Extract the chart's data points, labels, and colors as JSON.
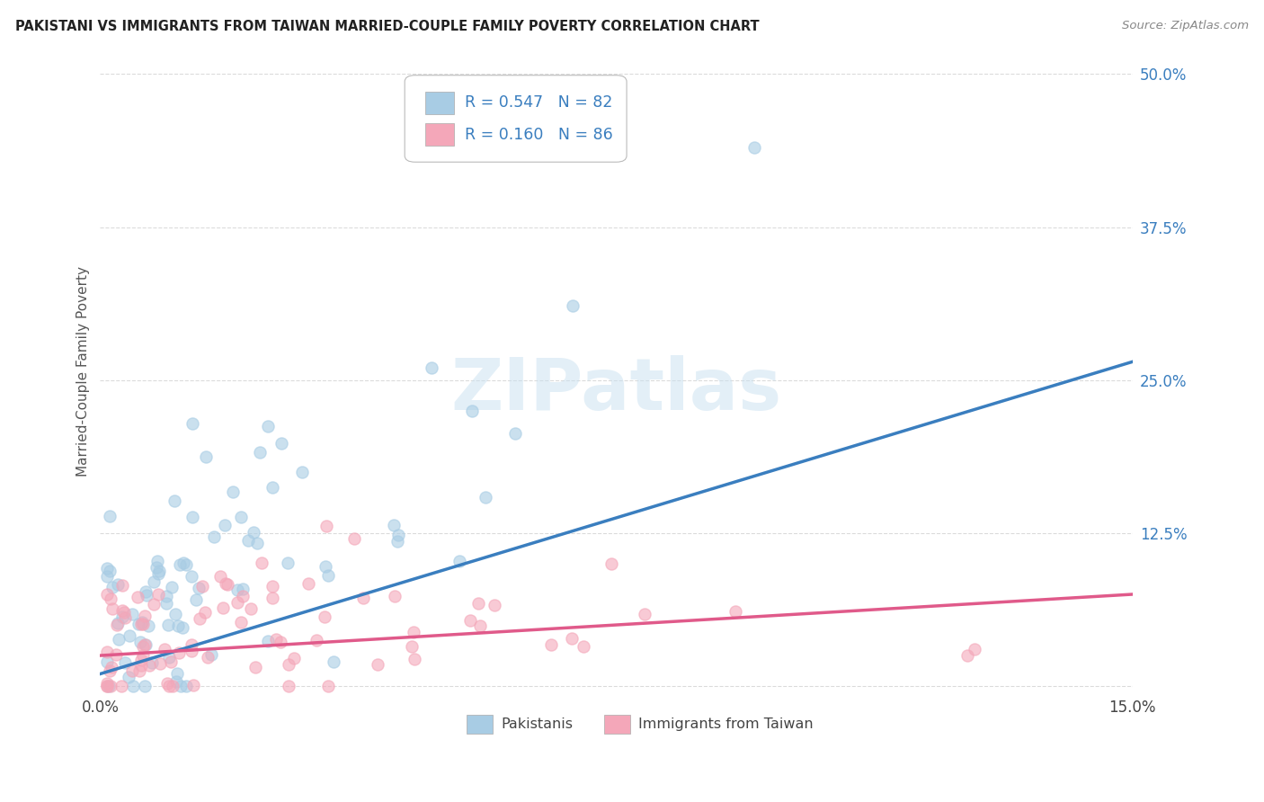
{
  "title": "PAKISTANI VS IMMIGRANTS FROM TAIWAN MARRIED-COUPLE FAMILY POVERTY CORRELATION CHART",
  "source": "Source: ZipAtlas.com",
  "ylabel": "Married-Couple Family Poverty",
  "x_min": 0.0,
  "x_max": 0.15,
  "y_min": -0.005,
  "y_max": 0.52,
  "y_ticks_right": [
    0.0,
    0.125,
    0.25,
    0.375,
    0.5
  ],
  "y_tick_labels_right": [
    "",
    "12.5%",
    "25.0%",
    "37.5%",
    "50.0%"
  ],
  "blue_color": "#a8cce4",
  "pink_color": "#f4a7b9",
  "blue_line_color": "#3a7ebf",
  "pink_line_color": "#e05a8a",
  "legend_text_color": "#3a7ebf",
  "watermark": "ZIPatlas",
  "legend_R_blue": "0.547",
  "legend_N_blue": "82",
  "legend_R_pink": "0.160",
  "legend_N_pink": "86",
  "background_color": "#ffffff",
  "grid_color": "#cccccc",
  "blue_line_x0": 0.0,
  "blue_line_y0": 0.01,
  "blue_line_x1": 0.15,
  "blue_line_y1": 0.265,
  "pink_line_x0": 0.0,
  "pink_line_y0": 0.025,
  "pink_line_x1": 0.15,
  "pink_line_y1": 0.075
}
